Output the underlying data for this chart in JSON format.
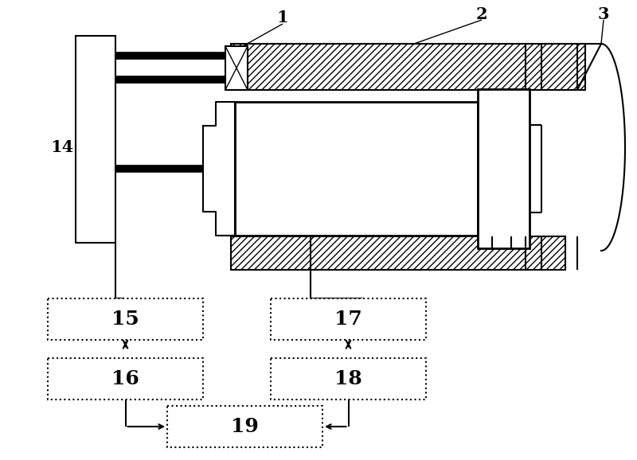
{
  "bg_color": "#ffffff",
  "lc": "#000000",
  "figsize": [
    8.0,
    5.78
  ],
  "dpi": 100
}
